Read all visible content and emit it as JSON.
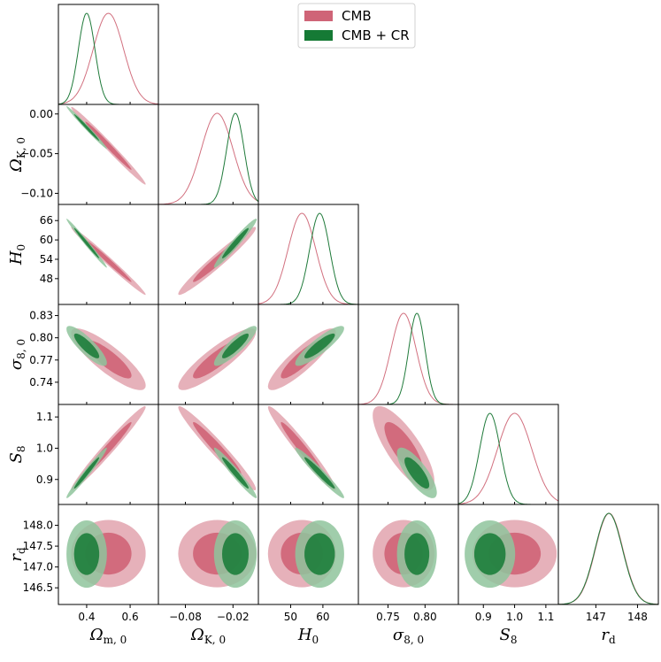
{
  "chart_data": {
    "type": "triangle",
    "params": [
      {
        "name": "m",
        "label_main": "Ω",
        "label_sub": "m, 0",
        "ticks": [
          {
            "v": 0.4,
            "t": "0.4"
          },
          {
            "v": 0.6,
            "t": "0.6"
          }
        ],
        "range": [
          0.27,
          0.73
        ],
        "cmb": {
          "mean": 0.5,
          "sd": 0.07
        },
        "cr": {
          "mean": 0.4,
          "sd": 0.038
        }
      },
      {
        "name": "k",
        "label_main": "Ω",
        "label_sub": "K, 0",
        "ticks": [
          {
            "v": -0.08,
            "t": "−0.08"
          },
          {
            "v": -0.02,
            "t": "−0.02"
          }
        ],
        "range": [
          -0.114,
          0.012
        ],
        "y_ticks": [
          {
            "v": 0.0,
            "t": "0.00"
          },
          {
            "v": -0.05,
            "t": "−0.05"
          },
          {
            "v": -0.1,
            "t": "−0.10"
          }
        ],
        "cmb": {
          "mean": -0.04,
          "sd": 0.02
        },
        "cr": {
          "mean": -0.017,
          "sd": 0.011
        }
      },
      {
        "name": "h",
        "label_main": "H",
        "label_sub": "0",
        "ticks": [
          {
            "v": 50,
            "t": "50"
          },
          {
            "v": 60,
            "t": "60"
          }
        ],
        "range": [
          40,
          71
        ],
        "y_ticks": [
          {
            "v": 48,
            "t": "48"
          },
          {
            "v": 54,
            "t": "54"
          },
          {
            "v": 60,
            "t": "60"
          },
          {
            "v": 66,
            "t": "66"
          }
        ],
        "cmb": {
          "mean": 53.5,
          "sd": 4.3
        },
        "cr": {
          "mean": 59.0,
          "sd": 3.1
        }
      },
      {
        "name": "s8z",
        "label_main": "σ",
        "label_sub": "8, 0",
        "ticks": [
          {
            "v": 0.75,
            "t": "0.75"
          },
          {
            "v": 0.8,
            "t": "0.80"
          }
        ],
        "range": [
          0.71,
          0.845
        ],
        "y_ticks": [
          {
            "v": 0.74,
            "t": "0.74"
          },
          {
            "v": 0.77,
            "t": "0.77"
          },
          {
            "v": 0.8,
            "t": "0.80"
          },
          {
            "v": 0.83,
            "t": "0.83"
          }
        ],
        "cmb": {
          "mean": 0.771,
          "sd": 0.017
        },
        "cr": {
          "mean": 0.789,
          "sd": 0.011
        }
      },
      {
        "name": "S8",
        "label_main": "S",
        "label_sub": "8",
        "ticks": [
          {
            "v": 0.9,
            "t": "0.9"
          },
          {
            "v": 1.0,
            "t": "1.0"
          },
          {
            "v": 1.1,
            "t": "1.1"
          }
        ],
        "range": [
          0.82,
          1.14
        ],
        "y_ticks": [
          {
            "v": 0.9,
            "t": "0.9"
          },
          {
            "v": 1.0,
            "t": "1.0"
          },
          {
            "v": 1.1,
            "t": "1.1"
          }
        ],
        "cmb": {
          "mean": 1.0,
          "sd": 0.055
        },
        "cr": {
          "mean": 0.921,
          "sd": 0.033
        }
      },
      {
        "name": "rd",
        "label_main": "r",
        "label_sub": "d",
        "ticks": [
          {
            "v": 147,
            "t": "147"
          },
          {
            "v": 148,
            "t": "148"
          }
        ],
        "range": [
          146.1,
          148.5
        ],
        "y_ticks": [
          {
            "v": 146.5,
            "t": "146.5"
          },
          {
            "v": 147.0,
            "t": "147.0"
          },
          {
            "v": 147.5,
            "t": "147.5"
          },
          {
            "v": 148.0,
            "t": "148.0"
          }
        ],
        "cmb": {
          "mean": 147.32,
          "sd": 0.33
        },
        "cr": {
          "mean": 147.31,
          "sd": 0.33
        }
      }
    ],
    "correlations": {
      "m-k": -0.99,
      "m-h": -0.99,
      "m-s8z": -0.85,
      "m-S8": 0.98,
      "m-rd": 0.0,
      "k-h": 0.97,
      "k-s8z": 0.88,
      "k-S8": -0.97,
      "k-rd": 0.0,
      "h-s8z": 0.88,
      "h-S8": -0.97,
      "h-rd": 0.0,
      "s8z-S8": -0.78,
      "s8z-rd": 0.0,
      "S8-rd": 0.0
    },
    "series": [
      {
        "name": "CMB",
        "key": "cmb",
        "fill_outer": "#e3a8b3",
        "fill_inner": "#cf6477",
        "line": "#d2707f"
      },
      {
        "name": "CMB + CR",
        "key": "cr",
        "fill_outer": "#8fc49c",
        "fill_inner": "#157a35",
        "line": "#1f7a3a"
      }
    ],
    "legend_loc": "top-center"
  }
}
